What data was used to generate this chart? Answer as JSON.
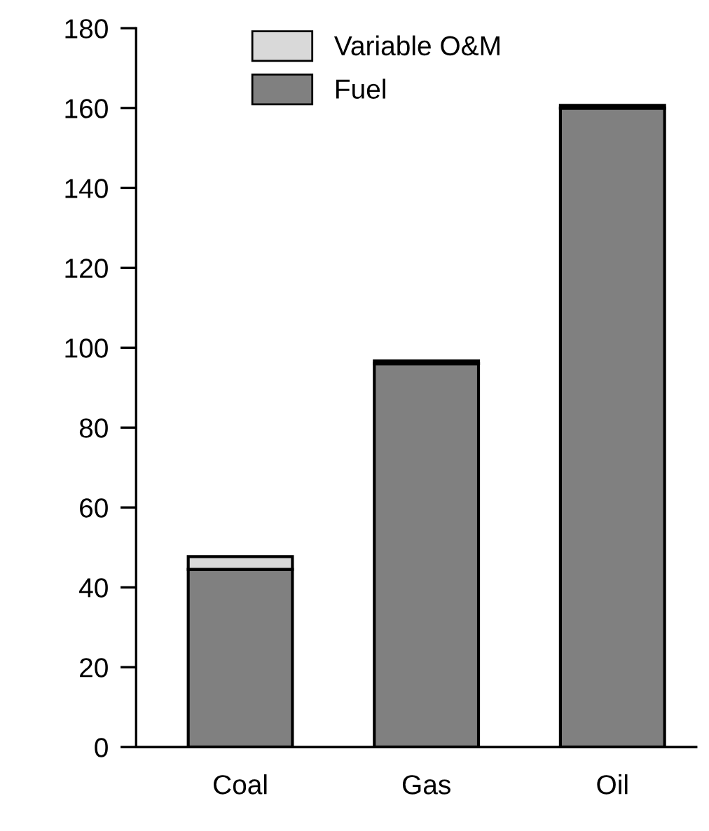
{
  "chart_data": {
    "type": "bar",
    "stacked": true,
    "categories": [
      "Coal",
      "Gas",
      "Oil"
    ],
    "series": [
      {
        "name": "Fuel",
        "color": "#808080",
        "values": [
          44.5,
          96,
          160
        ]
      },
      {
        "name": "Variable O&M",
        "color": "#d9d9d9",
        "values": [
          3.2,
          0.7,
          0.7
        ]
      }
    ],
    "ylim": [
      0,
      180
    ],
    "yticks": [
      0,
      20,
      40,
      60,
      80,
      100,
      120,
      140,
      160,
      180
    ],
    "grid": false,
    "legend": "top"
  }
}
